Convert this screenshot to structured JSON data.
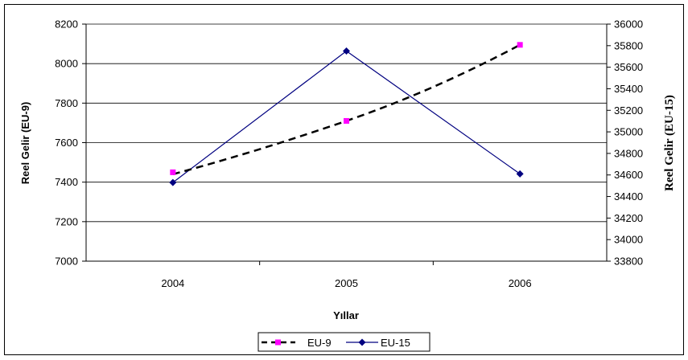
{
  "chart_data": {
    "type": "line",
    "categories": [
      "2004",
      "2005",
      "2006"
    ],
    "xlabel": "Yıllar",
    "ylabel_left": "Reel Gelir (EU-9)",
    "ylabel_right": "Reel Gelir (EU-15)",
    "ylim_left": [
      7000,
      8200
    ],
    "yticks_left": [
      7000,
      7200,
      7400,
      7600,
      7800,
      8000,
      8200
    ],
    "ylim_right": [
      33800,
      36000
    ],
    "yticks_right": [
      33800,
      34000,
      34200,
      34400,
      34600,
      34800,
      35000,
      35200,
      35400,
      35600,
      35800,
      36000
    ],
    "grid": "horizontal",
    "legend_position": "bottom-center",
    "series": [
      {
        "name": "EU-9",
        "axis": "left",
        "values": [
          7450,
          7710,
          8095
        ],
        "color": "#ff00ff",
        "line": "dashed",
        "line_color": "#000000",
        "trend_values": [
          7440,
          7710,
          8095
        ],
        "marker": "square"
      },
      {
        "name": "EU-15",
        "axis": "right",
        "values": [
          34530,
          35750,
          34610
        ],
        "color": "#000080",
        "line": "solid",
        "line_color": "#000080",
        "marker": "diamond"
      }
    ]
  }
}
